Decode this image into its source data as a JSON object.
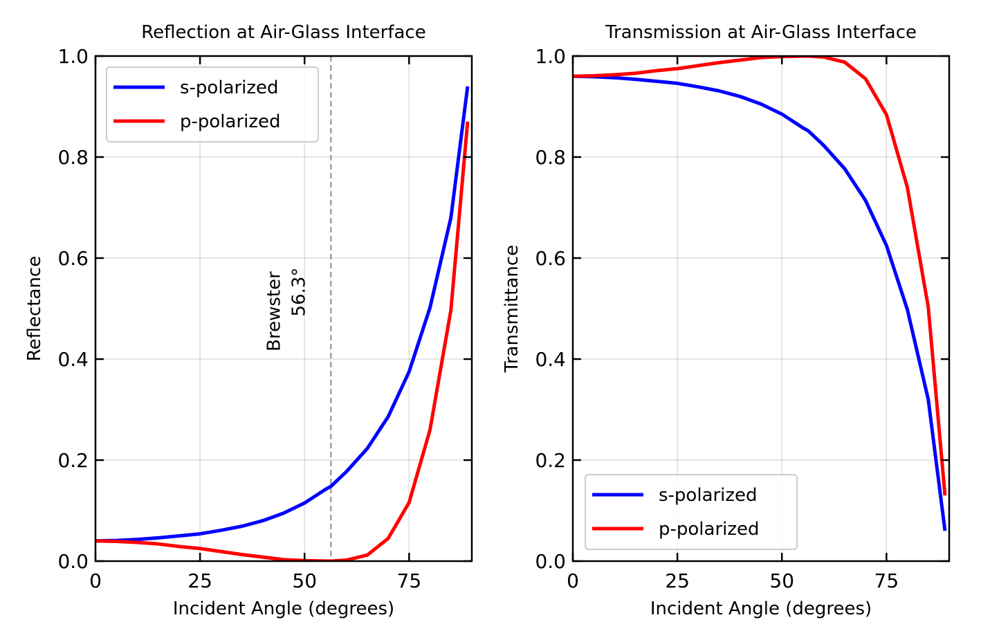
{
  "chart_data": [
    {
      "type": "line",
      "title": "Reflection at Air-Glass Interface",
      "xlabel": "Incident Angle (degrees)",
      "ylabel": "Reflectance",
      "xlim": [
        0,
        90
      ],
      "ylim": [
        0,
        1
      ],
      "xticks": [
        "0",
        "25",
        "50",
        "75"
      ],
      "yticks": [
        "0.0",
        "0.2",
        "0.4",
        "0.6",
        "0.8",
        "1.0"
      ],
      "grid": true,
      "legend_position": "upper-left",
      "x": [
        0,
        5,
        10,
        15,
        20,
        25,
        30,
        35,
        40,
        45,
        50,
        55,
        56.3,
        60,
        65,
        70,
        75,
        80,
        85,
        89
      ],
      "series": [
        {
          "name": "s-polarized",
          "color": "#0000ff",
          "values": [
            0.04,
            0.041,
            0.043,
            0.046,
            0.05,
            0.054,
            0.061,
            0.069,
            0.08,
            0.095,
            0.115,
            0.142,
            0.148,
            0.177,
            0.223,
            0.286,
            0.375,
            0.502,
            0.68,
            0.94
          ]
        },
        {
          "name": "p-polarized",
          "color": "#ff0000",
          "values": [
            0.04,
            0.039,
            0.037,
            0.034,
            0.029,
            0.025,
            0.019,
            0.013,
            0.008,
            0.003,
            0.001,
            0.0002,
            0.0,
            0.002,
            0.012,
            0.045,
            0.116,
            0.26,
            0.497,
            0.87
          ]
        }
      ],
      "annotation": {
        "line1": "Brewster",
        "line2": "56.3°",
        "x": 56.3,
        "color": "#a0a0a0"
      }
    },
    {
      "type": "line",
      "title": "Transmission at Air-Glass Interface",
      "xlabel": "Incident Angle (degrees)",
      "ylabel": "Transmittance",
      "xlim": [
        0,
        90
      ],
      "ylim": [
        0,
        1
      ],
      "xticks": [
        "0",
        "25",
        "50",
        "75"
      ],
      "yticks": [
        "0.0",
        "0.2",
        "0.4",
        "0.6",
        "0.8",
        "1.0"
      ],
      "grid": true,
      "legend_position": "lower-left",
      "x": [
        0,
        5,
        10,
        15,
        20,
        25,
        30,
        35,
        40,
        45,
        50,
        55,
        56.3,
        60,
        65,
        70,
        75,
        80,
        85,
        89
      ],
      "series": [
        {
          "name": "s-polarized",
          "color": "#0000ff",
          "values": [
            0.96,
            0.959,
            0.957,
            0.954,
            0.95,
            0.946,
            0.939,
            0.931,
            0.92,
            0.905,
            0.885,
            0.858,
            0.852,
            0.823,
            0.777,
            0.714,
            0.625,
            0.498,
            0.32,
            0.06
          ]
        },
        {
          "name": "p-polarized",
          "color": "#ff0000",
          "values": [
            0.96,
            0.961,
            0.963,
            0.966,
            0.971,
            0.975,
            0.981,
            0.987,
            0.992,
            0.997,
            0.999,
            0.9998,
            1.0,
            0.998,
            0.988,
            0.955,
            0.884,
            0.74,
            0.503,
            0.13
          ]
        }
      ]
    }
  ]
}
